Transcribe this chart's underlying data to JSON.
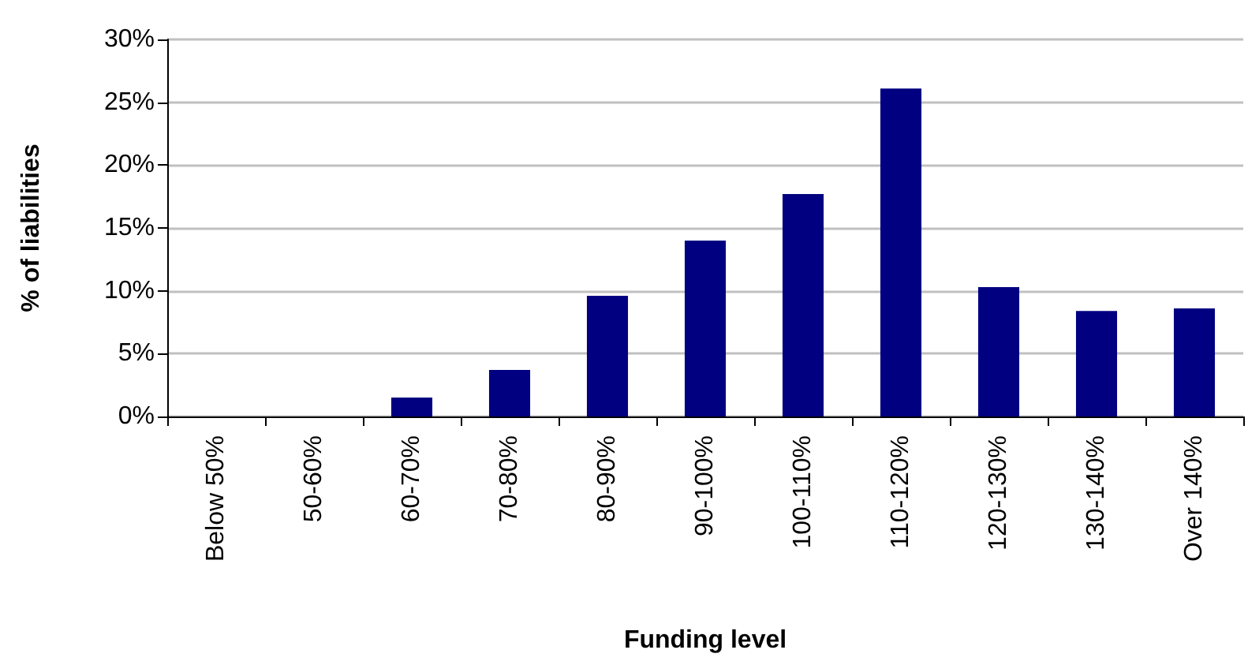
{
  "chart_data": {
    "type": "bar",
    "xlabel": "Funding level",
    "ylabel": "% of liabilities",
    "categories": [
      "Below 50%",
      "50-60%",
      "60-70%",
      "70-80%",
      "80-90%",
      "90-100%",
      "100-110%",
      "110-120%",
      "120-130%",
      "130-140%",
      "Over 140%"
    ],
    "values": [
      0,
      0,
      1.5,
      3.7,
      9.6,
      14.0,
      17.7,
      26.1,
      10.3,
      8.4,
      8.6
    ],
    "color": "#000080",
    "ylim": [
      0,
      30
    ],
    "yticks": [
      {
        "value": 0,
        "label": "0%"
      },
      {
        "value": 5,
        "label": "5%"
      },
      {
        "value": 10,
        "label": "10%"
      },
      {
        "value": 15,
        "label": "15%"
      },
      {
        "value": 20,
        "label": "20%"
      },
      {
        "value": 25,
        "label": "25%"
      },
      {
        "value": 30,
        "label": "30%"
      }
    ],
    "grid": "y"
  }
}
